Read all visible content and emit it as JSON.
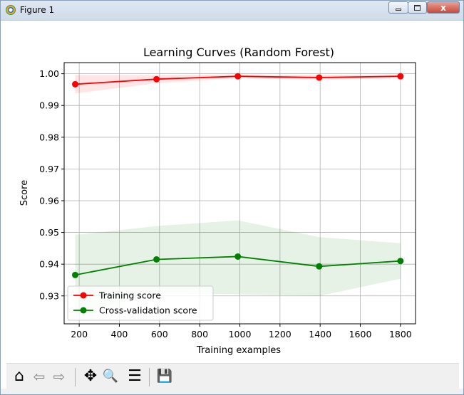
{
  "window": {
    "title": "Figure 1",
    "close_glyph": "x"
  },
  "toolbar": {
    "buttons": [
      {
        "name": "home-button",
        "icon": "home-icon",
        "glyph": "⌂"
      },
      {
        "name": "back-button",
        "icon": "arrow-left-icon",
        "glyph": "⇦"
      },
      {
        "name": "forward-button",
        "icon": "arrow-right-icon",
        "glyph": "⇨"
      },
      {
        "name": "pan-button",
        "icon": "move-icon",
        "glyph": "✥"
      },
      {
        "name": "zoom-button",
        "icon": "magnifier-icon",
        "glyph": "🔍"
      },
      {
        "name": "configure-subplots-button",
        "icon": "sliders-icon",
        "glyph": "☰"
      },
      {
        "name": "save-button",
        "icon": "floppy-disk-icon",
        "glyph": "💾"
      }
    ]
  },
  "chart_data": {
    "type": "line",
    "title": "Learning Curves (Random Forest)",
    "xlabel": "Training examples",
    "ylabel": "Score",
    "xlim": [
      125,
      1875
    ],
    "ylim": [
      0.9212,
      1.0035
    ],
    "xticks": [
      200,
      400,
      600,
      800,
      1000,
      1200,
      1400,
      1600,
      1800
    ],
    "yticks": [
      0.93,
      0.94,
      0.95,
      0.96,
      0.97,
      0.98,
      0.99,
      1.0
    ],
    "ytick_labels": [
      "0.93",
      "0.94",
      "0.95",
      "0.96",
      "0.97",
      "0.98",
      "0.99",
      "1.00"
    ],
    "grid": true,
    "legend_position": "lower-left",
    "x": [
      180,
      585,
      990,
      1395,
      1800
    ],
    "series": [
      {
        "name": "Training score",
        "color": "#ff0000",
        "values": [
          0.9967,
          0.9983,
          0.9992,
          0.9988,
          0.9992
        ],
        "band_lower": [
          0.9938,
          0.997,
          0.9986,
          0.998,
          0.9986
        ],
        "band_upper": [
          0.9996,
          0.9996,
          0.9998,
          0.9996,
          0.9998
        ]
      },
      {
        "name": "Cross-validation score",
        "color": "#008000",
        "values": [
          0.9366,
          0.9415,
          0.9424,
          0.9393,
          0.941
        ],
        "band_lower": [
          0.924,
          0.931,
          0.9305,
          0.93,
          0.9354
        ],
        "band_upper": [
          0.9492,
          0.952,
          0.9538,
          0.9485,
          0.9466
        ]
      }
    ]
  }
}
